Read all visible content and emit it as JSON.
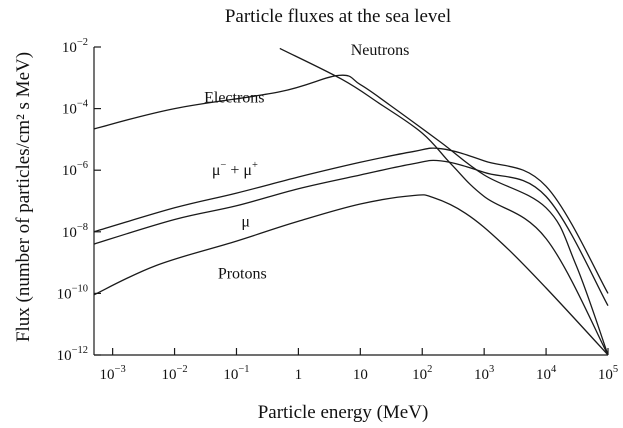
{
  "chart_data": {
    "type": "line",
    "title": "Particle fluxes at the sea level",
    "xlabel": "Particle energy (MeV)",
    "ylabel": "Flux (number of particles/cm² s MeV)",
    "x_scale": "log",
    "y_scale": "log",
    "xlim": [
      0.0005,
      100000
    ],
    "ylim": [
      1e-12,
      0.01
    ],
    "x_ticks": [
      {
        "value": 0.001,
        "base": "10",
        "exp": "−3"
      },
      {
        "value": 0.01,
        "base": "10",
        "exp": "−2"
      },
      {
        "value": 0.1,
        "base": "10",
        "exp": "−1"
      },
      {
        "value": 1,
        "base": "1",
        "exp": ""
      },
      {
        "value": 10,
        "base": "10",
        "exp": ""
      },
      {
        "value": 100,
        "base": "10",
        "exp": "2"
      },
      {
        "value": 1000,
        "base": "10",
        "exp": "3"
      },
      {
        "value": 10000,
        "base": "10",
        "exp": "4"
      },
      {
        "value": 100000,
        "base": "10",
        "exp": "5"
      }
    ],
    "y_ticks": [
      {
        "value": 0.01,
        "base": "10",
        "exp": "−2"
      },
      {
        "value": 0.0001,
        "base": "10",
        "exp": "−4"
      },
      {
        "value": 1e-06,
        "base": "10",
        "exp": "−6"
      },
      {
        "value": 1e-08,
        "base": "10",
        "exp": "−8"
      },
      {
        "value": 1e-10,
        "base": "10",
        "exp": "−10"
      },
      {
        "value": 1e-12,
        "base": "10",
        "exp": "−12"
      }
    ],
    "grid": false,
    "series": [
      {
        "name": "Electrons",
        "points": [
          [
            0.0005,
            2.2e-05
          ],
          [
            0.01,
            0.0001
          ],
          [
            0.5,
            0.00035
          ],
          [
            4.5,
            0.0012
          ],
          [
            10,
            0.0006
          ],
          [
            30,
            0.00013
          ],
          [
            200,
            8e-06
          ],
          [
            1000,
            7e-07
          ],
          [
            10000,
            6e-08
          ],
          [
            30000,
            9e-10
          ],
          [
            100000,
            1e-12
          ]
        ]
      },
      {
        "name": "Neutrons",
        "points": [
          [
            0.5,
            0.009
          ],
          [
            5,
            0.0009
          ],
          [
            20,
            0.00015
          ],
          [
            100,
            1.6e-05
          ],
          [
            300,
            1.5e-06
          ],
          [
            1000,
            1.4e-07
          ],
          [
            10000,
            6e-09
          ],
          [
            100000,
            1e-12
          ]
        ]
      },
      {
        "name": "μ⁻ + μ⁺",
        "points": [
          [
            0.0005,
            1e-08
          ],
          [
            0.01,
            6e-08
          ],
          [
            0.1,
            1.8e-07
          ],
          [
            1,
            6e-07
          ],
          [
            10,
            1.8e-06
          ],
          [
            70,
            4e-06
          ],
          [
            200,
            5e-06
          ],
          [
            1000,
            2e-06
          ],
          [
            10000,
            3e-07
          ],
          [
            100000,
            1e-10
          ]
        ]
      },
      {
        "name": "μ",
        "points": [
          [
            0.0005,
            4e-09
          ],
          [
            0.01,
            2.5e-08
          ],
          [
            0.1,
            7e-08
          ],
          [
            1,
            2.5e-07
          ],
          [
            10,
            7e-07
          ],
          [
            70,
            1.6e-06
          ],
          [
            200,
            2e-06
          ],
          [
            1000,
            8.5e-07
          ],
          [
            10000,
            1.4e-07
          ],
          [
            100000,
            4e-11
          ]
        ]
      },
      {
        "name": "Protons",
        "points": [
          [
            0.0005,
            9e-11
          ],
          [
            0.005,
            8e-10
          ],
          [
            0.1,
            5e-09
          ],
          [
            1,
            2.2e-08
          ],
          [
            10,
            8e-08
          ],
          [
            70,
            1.5e-07
          ],
          [
            150,
            1.3e-07
          ],
          [
            500,
            4e-08
          ],
          [
            2000,
            4e-09
          ],
          [
            10000,
            1.5e-10
          ],
          [
            100000,
            1e-12
          ]
        ]
      }
    ],
    "annotations": [
      {
        "text": "Electrons",
        "x": 0.03,
        "y": 0.00016
      },
      {
        "text": "Neutrons",
        "x": 7,
        "y": 0.0055
      },
      {
        "text": "μ",
        "sup": "−",
        "text2": "+ μ",
        "sup2": "+",
        "x": 0.04,
        "y": 7e-07
      },
      {
        "text": "μ",
        "x": 0.12,
        "y": 1.5e-08
      },
      {
        "text": "Protons",
        "x": 0.05,
        "y": 3e-10
      }
    ]
  }
}
